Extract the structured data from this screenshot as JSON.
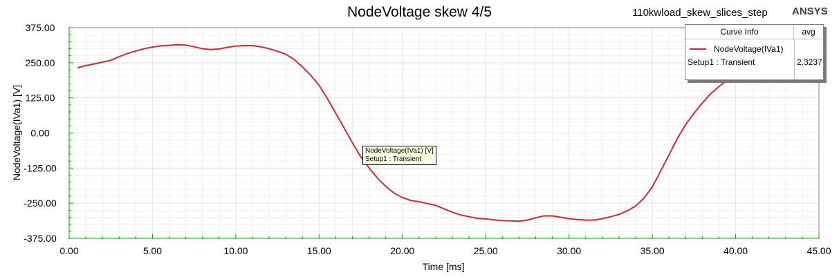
{
  "title": "NodeVoltage skew 4/5",
  "project_name": "110kwload_skew_slices_step",
  "brand": "ANSYS",
  "legend": {
    "header_name": "Curve Info",
    "header_value": "avg",
    "series_label": "NodeVoltage(IVa1)",
    "series_sublabel": "Setup1 : Transient",
    "series_value": "2.3237"
  },
  "tooltip": {
    "line1": "NodeVoltage(IVa1) [V]",
    "line2": "Setup1 : Transient"
  },
  "colors": {
    "series": "#d9262e",
    "axis_ticks": "#00a800",
    "grid": "#e4e4e4"
  },
  "chart_data": {
    "type": "line",
    "title": "NodeVoltage skew 4/5",
    "xlabel": "Time [ms]",
    "ylabel": "NodeVoltage(IVa1) [V]",
    "xlim": [
      0,
      45
    ],
    "ylim": [
      -375,
      375
    ],
    "x_ticks": [
      "0.00",
      "5.00",
      "10.00",
      "15.00",
      "20.00",
      "25.00",
      "30.00",
      "35.00",
      "40.00",
      "45.00"
    ],
    "y_ticks": [
      "375.00",
      "250.00",
      "125.00",
      "0.00",
      "-125.00",
      "-250.00",
      "-375.00"
    ],
    "grid": true,
    "legend_position": "top-right",
    "series": [
      {
        "name": "NodeVoltage(IVa1)",
        "x": [
          0.5,
          1.0,
          1.5,
          2.0,
          2.5,
          3.0,
          3.5,
          4.0,
          4.5,
          5.0,
          5.5,
          6.0,
          6.5,
          7.0,
          7.5,
          8.0,
          8.5,
          9.0,
          9.5,
          10.0,
          10.5,
          11.0,
          11.5,
          12.0,
          12.5,
          13.0,
          13.5,
          14.0,
          14.5,
          15.0,
          15.5,
          16.0,
          16.5,
          17.0,
          17.5,
          18.0,
          18.5,
          19.0,
          19.5,
          20.0,
          20.5,
          21.0,
          21.5,
          22.0,
          22.5,
          23.0,
          23.5,
          24.0,
          24.5,
          25.0,
          25.5,
          26.0,
          26.5,
          27.0,
          27.5,
          28.0,
          28.5,
          29.0,
          29.5,
          30.0,
          30.5,
          31.0,
          31.5,
          32.0,
          32.5,
          33.0,
          33.5,
          34.0,
          34.5,
          35.0,
          35.5,
          36.0,
          36.5,
          37.0,
          37.5,
          38.0,
          38.5,
          39.0,
          39.5,
          40.0
        ],
        "y": [
          232,
          240,
          246,
          252,
          259,
          272,
          283,
          292,
          300,
          306,
          310,
          312,
          314,
          313,
          307,
          300,
          297,
          299,
          305,
          309,
          311,
          311,
          307,
          300,
          291,
          280,
          262,
          235,
          205,
          170,
          122,
          70,
          18,
          -35,
          -85,
          -125,
          -160,
          -190,
          -214,
          -230,
          -240,
          -245,
          -251,
          -258,
          -270,
          -282,
          -292,
          -298,
          -304,
          -306,
          -309,
          -312,
          -313,
          -314,
          -310,
          -302,
          -295,
          -295,
          -300,
          -305,
          -308,
          -310,
          -310,
          -305,
          -298,
          -290,
          -277,
          -260,
          -232,
          -192,
          -135,
          -78,
          -20,
          30,
          70,
          107,
          140,
          165,
          190,
          210
        ]
      }
    ]
  }
}
